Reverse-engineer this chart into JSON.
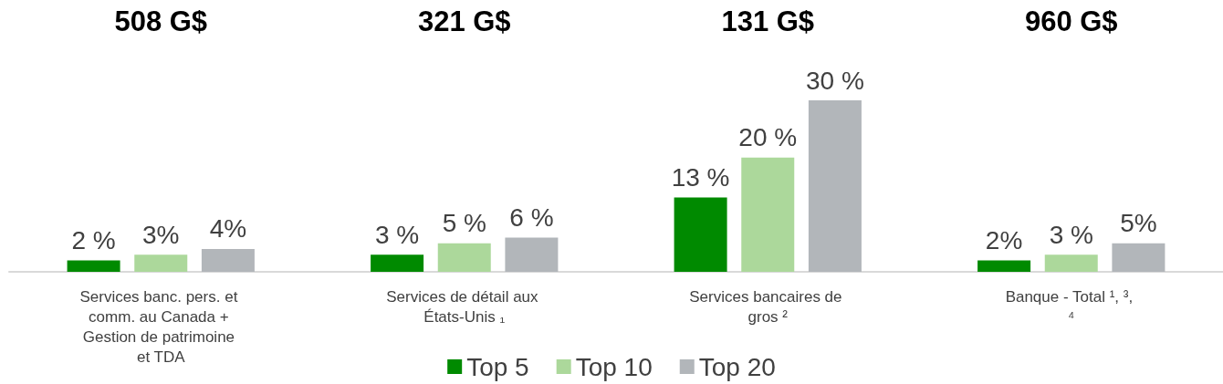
{
  "chart_data": {
    "type": "bar",
    "categories": [
      "Services banc. pers. et comm. au Canada + Gestion de patrimoine et TDA",
      "Services de détail aux États-Unis ₁",
      "Services bancaires de gros ²",
      "Banque - Total ¹, ³, ⁴"
    ],
    "series": [
      {
        "name": "Top 5",
        "color": "#008a00",
        "values": [
          2,
          3,
          13,
          2
        ],
        "value_labels": [
          "2 %",
          "3 %",
          "13 %",
          "2%"
        ]
      },
      {
        "name": "Top 10",
        "color": "#acd89b",
        "values": [
          3,
          5,
          20,
          3
        ],
        "value_labels": [
          "3%",
          "5 %",
          "20 %",
          "3 %"
        ]
      },
      {
        "name": "Top 20",
        "color": "#b2b6ba",
        "values": [
          4,
          6,
          30,
          5
        ],
        "value_labels": [
          "4%",
          "6 %",
          "30 %",
          "5%"
        ]
      }
    ],
    "annotations": [
      "508 G$",
      "321 G$",
      "131 G$",
      "960 G$"
    ],
    "legend": "bottom"
  }
}
